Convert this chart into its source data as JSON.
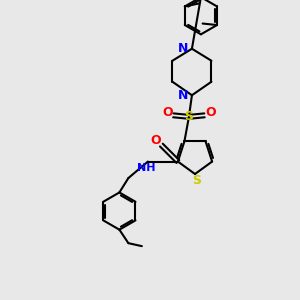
{
  "bg_color": "#e8e8e8",
  "bond_color": "#000000",
  "n_color": "#0000ff",
  "o_color": "#ff0000",
  "s_color": "#cccc00",
  "lw": 1.5,
  "figsize": [
    3.0,
    3.0
  ],
  "dpi": 100,
  "xlim": [
    0,
    10
  ],
  "ylim": [
    0,
    10
  ]
}
